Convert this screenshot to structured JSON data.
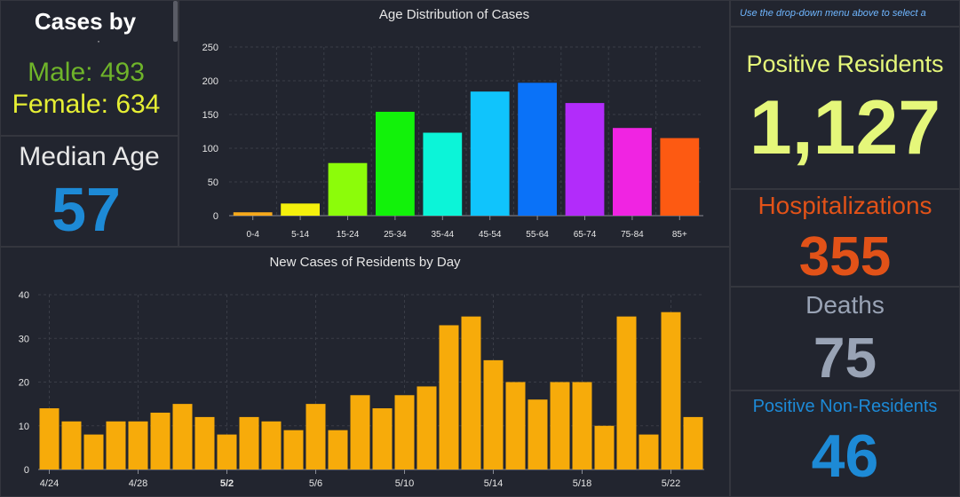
{
  "gender": {
    "title": "Cases by",
    "stray_mark": "·",
    "male_label": "Male: 493",
    "female_label": "Female: 634"
  },
  "median": {
    "label": "Median Age",
    "value": "57"
  },
  "right_note": "Use the drop-down menu above to select a",
  "stats": {
    "positive_residents": {
      "label": "Positive Residents",
      "value": "1,127",
      "color": "#e5f77a"
    },
    "hospitalizations": {
      "label": "Hospitalizations",
      "value": "355",
      "color": "#e25218"
    },
    "deaths": {
      "label": "Deaths",
      "value": "75",
      "color": "#99a3b5"
    },
    "positive_non_residents": {
      "label": "Positive Non-Residents",
      "value": "46",
      "color": "#1d8ad6"
    }
  },
  "chart_data": [
    {
      "type": "bar",
      "title": "Age Distribution of Cases",
      "categories": [
        "0-4",
        "5-14",
        "15-24",
        "25-34",
        "35-44",
        "45-54",
        "55-64",
        "65-74",
        "75-84",
        "85+"
      ],
      "values": [
        5,
        18,
        78,
        154,
        123,
        184,
        197,
        167,
        130,
        115
      ],
      "colors": [
        "#f6a91c",
        "#f4f00c",
        "#8cfc0a",
        "#12f20a",
        "#0cf4d8",
        "#10c4fc",
        "#0a72f8",
        "#b22cfa",
        "#f024e2",
        "#fd5a12"
      ],
      "ylim": [
        0,
        250
      ],
      "yticks": [
        0,
        50,
        100,
        150,
        200,
        250
      ],
      "grid": true
    },
    {
      "type": "bar",
      "title": "New Cases of Residents by Day",
      "categories": [
        "4/24",
        "4/25",
        "4/26",
        "4/27",
        "4/28",
        "4/29",
        "4/30",
        "5/1",
        "5/2",
        "5/3",
        "5/4",
        "5/5",
        "5/6",
        "5/7",
        "5/8",
        "5/9",
        "5/10",
        "5/11",
        "5/12",
        "5/13",
        "5/14",
        "5/15",
        "5/16",
        "5/17",
        "5/18",
        "5/19",
        "5/20",
        "5/21",
        "5/22",
        "5/23"
      ],
      "values": [
        14,
        11,
        8,
        11,
        11,
        13,
        15,
        12,
        8,
        12,
        11,
        9,
        15,
        9,
        17,
        14,
        17,
        19,
        33,
        35,
        25,
        20,
        16,
        20,
        20,
        10,
        35,
        8,
        36,
        12
      ],
      "tick_labels": [
        "4/24",
        "4/28",
        "5/2",
        "5/6",
        "5/10",
        "5/14",
        "5/18",
        "5/22"
      ],
      "bold_tick": "5/2",
      "color": "#f7ab0a",
      "ylim": [
        0,
        40
      ],
      "yticks": [
        0,
        10,
        20,
        30,
        40
      ],
      "grid": true
    }
  ]
}
